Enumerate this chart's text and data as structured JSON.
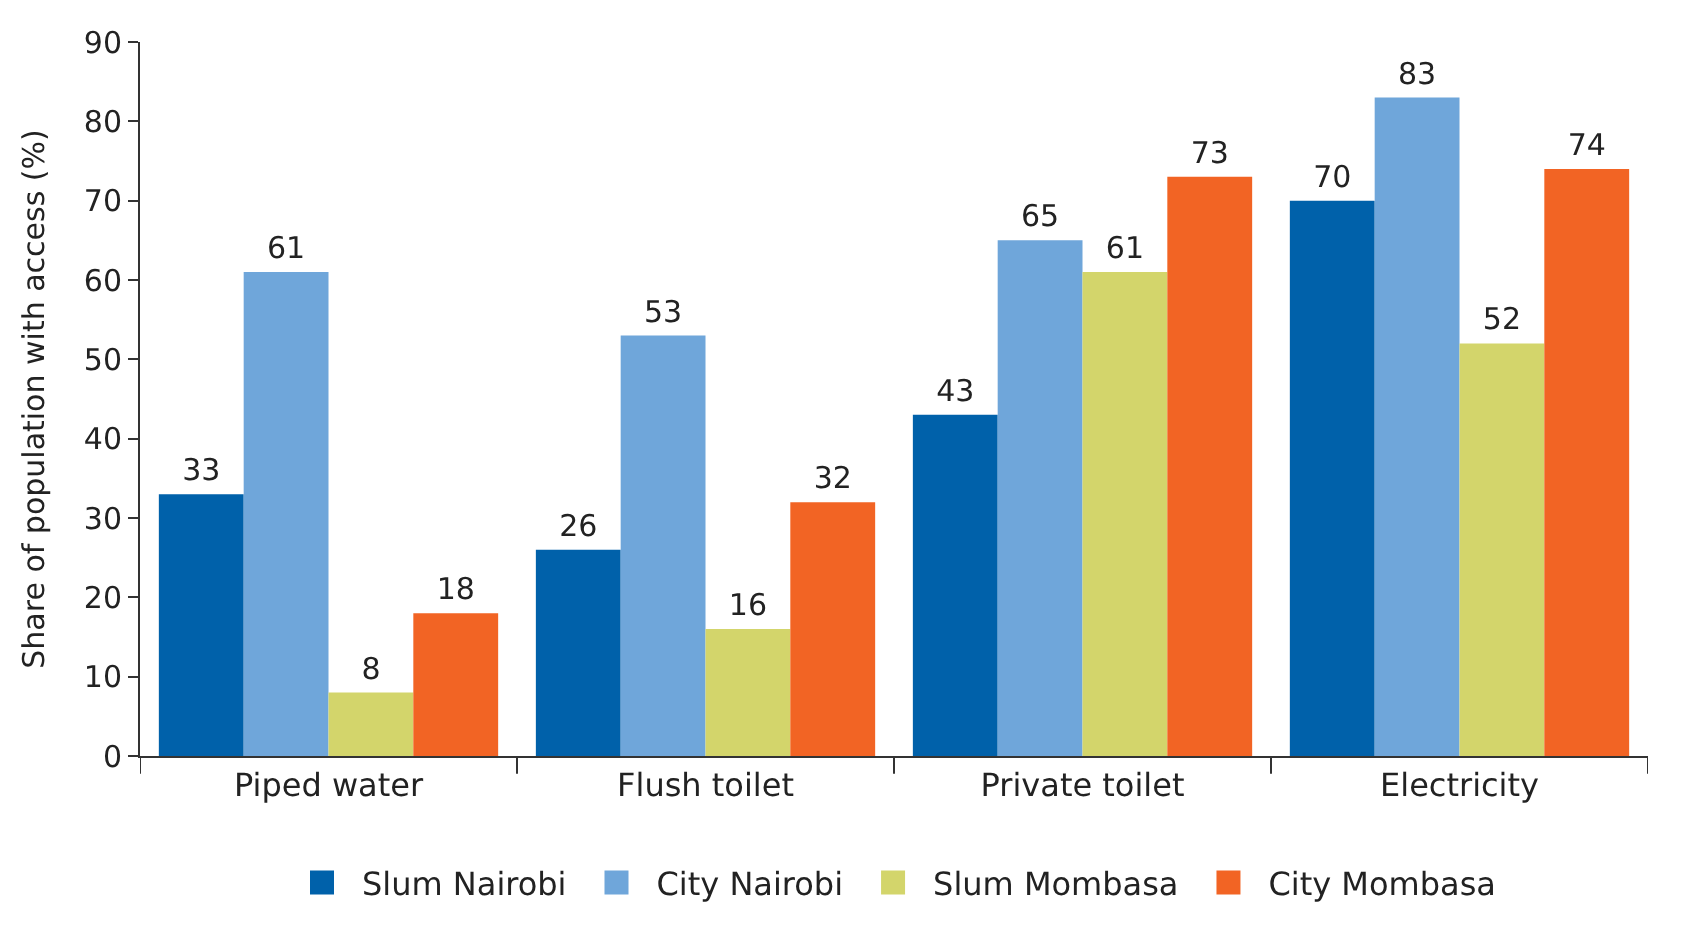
{
  "chart_data": {
    "type": "bar",
    "ylabel": "Share of population with access (%)",
    "categories": [
      "Piped water",
      "Flush toilet",
      "Private toilet",
      "Electricity"
    ],
    "series": [
      {
        "name": "Slum Nairobi",
        "color": "#0061aa",
        "values": [
          33,
          26,
          43,
          70
        ]
      },
      {
        "name": "City Nairobi",
        "color": "#6fa6da",
        "values": [
          61,
          53,
          65,
          83
        ]
      },
      {
        "name": "Slum Mombasa",
        "color": "#d3d56b",
        "values": [
          8,
          16,
          61,
          52
        ]
      },
      {
        "name": "City Mombasa",
        "color": "#f26424",
        "values": [
          18,
          32,
          73,
          74
        ]
      }
    ],
    "ylim": [
      0,
      90
    ],
    "yticks": [
      0,
      10,
      20,
      30,
      40,
      50,
      60,
      70,
      80,
      90
    ],
    "legend": "bottom",
    "data_labels": true
  }
}
